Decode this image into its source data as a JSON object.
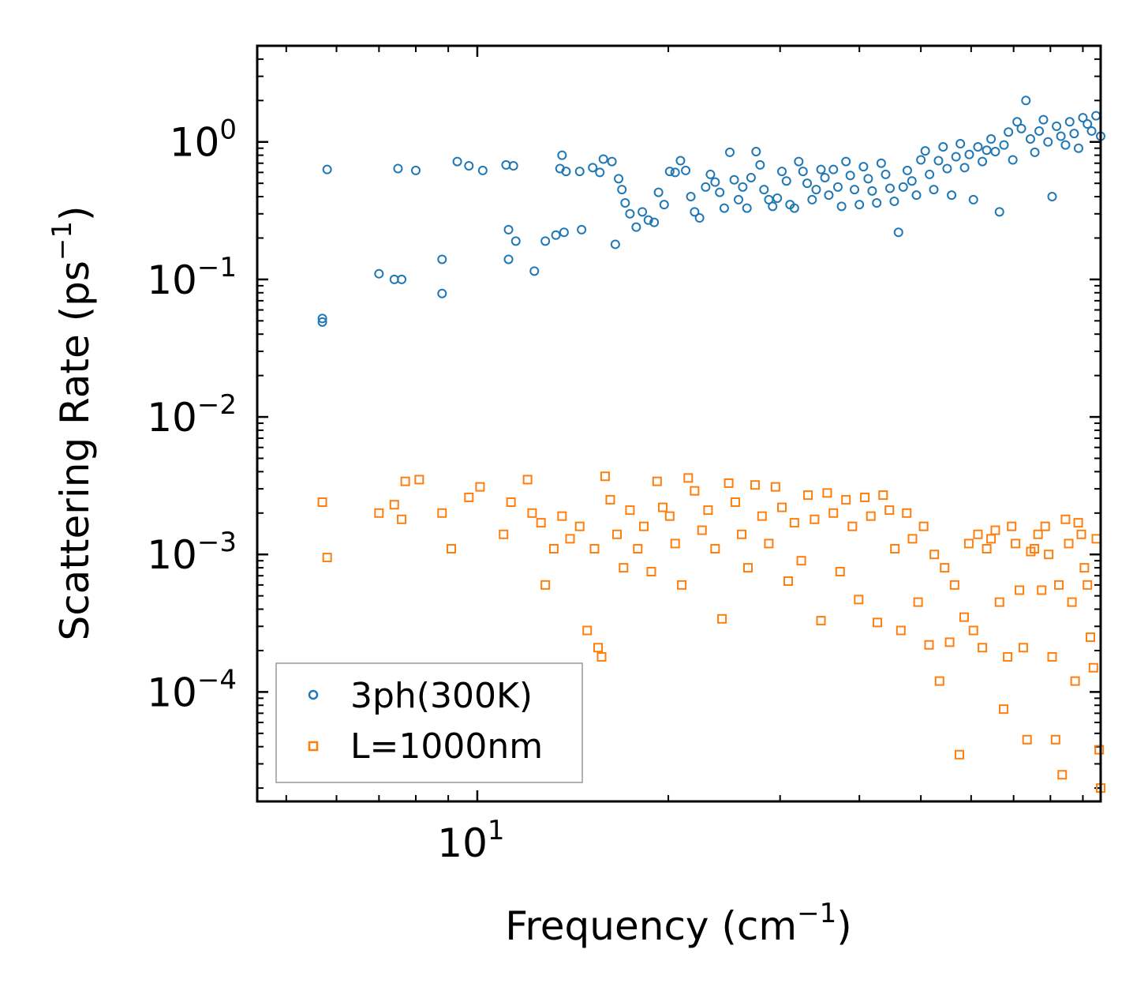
{
  "chart_data": {
    "type": "scatter",
    "title": "",
    "xlabel": "Frequency (cm",
    "xlabel_sup": "−1",
    "xlabel_close": ")",
    "ylabel": "Scattering Rate (ps",
    "ylabel_sup": "−1",
    "ylabel_close": ")",
    "xscale": "log",
    "yscale": "log",
    "xlim": [
      4.5,
      96
    ],
    "ylim": [
      1.6e-05,
      5.0
    ],
    "x_ticks": [
      {
        "value": 10,
        "base": "10",
        "exp": "1"
      }
    ],
    "y_ticks": [
      {
        "value": 1,
        "base": "10",
        "exp": "0"
      },
      {
        "value": 0.1,
        "base": "10",
        "exp": "−1"
      },
      {
        "value": 0.01,
        "base": "10",
        "exp": "−2"
      },
      {
        "value": 0.001,
        "base": "10",
        "exp": "−3"
      },
      {
        "value": 0.0001,
        "base": "10",
        "exp": "−4"
      }
    ],
    "legend_position": "bottom-left",
    "series": [
      {
        "name": "3ph(300K)",
        "marker": "circle",
        "color": "#1f77b4",
        "points": [
          [
            5.7,
            0.049
          ],
          [
            5.7,
            0.052
          ],
          [
            5.8,
            0.63
          ],
          [
            7.0,
            0.11
          ],
          [
            7.4,
            0.1
          ],
          [
            7.6,
            0.1
          ],
          [
            7.5,
            0.64
          ],
          [
            8.0,
            0.62
          ],
          [
            8.8,
            0.14
          ],
          [
            8.8,
            0.079
          ],
          [
            9.3,
            0.72
          ],
          [
            9.7,
            0.67
          ],
          [
            10.2,
            0.62
          ],
          [
            11.1,
            0.68
          ],
          [
            11.4,
            0.67
          ],
          [
            11.2,
            0.23
          ],
          [
            11.2,
            0.14
          ],
          [
            11.5,
            0.19
          ],
          [
            12.3,
            0.115
          ],
          [
            12.8,
            0.19
          ],
          [
            13.3,
            0.21
          ],
          [
            13.7,
            0.22
          ],
          [
            13.5,
            0.64
          ],
          [
            13.8,
            0.61
          ],
          [
            13.6,
            0.8
          ],
          [
            14.5,
            0.61
          ],
          [
            14.6,
            0.23
          ],
          [
            15.2,
            0.65
          ],
          [
            15.6,
            0.6
          ],
          [
            15.8,
            0.75
          ],
          [
            16.3,
            0.72
          ],
          [
            16.5,
            0.18
          ],
          [
            16.7,
            0.54
          ],
          [
            16.9,
            0.45
          ],
          [
            17.1,
            0.36
          ],
          [
            17.4,
            0.3
          ],
          [
            17.8,
            0.24
          ],
          [
            18.2,
            0.31
          ],
          [
            18.6,
            0.27
          ],
          [
            19.0,
            0.26
          ],
          [
            19.3,
            0.43
          ],
          [
            19.7,
            0.35
          ],
          [
            20.1,
            0.61
          ],
          [
            20.5,
            0.6
          ],
          [
            20.9,
            0.73
          ],
          [
            21.3,
            0.62
          ],
          [
            21.7,
            0.4
          ],
          [
            22.0,
            0.31
          ],
          [
            22.4,
            0.28
          ],
          [
            22.9,
            0.47
          ],
          [
            23.3,
            0.58
          ],
          [
            23.7,
            0.51
          ],
          [
            24.1,
            0.43
          ],
          [
            24.5,
            0.33
          ],
          [
            25.0,
            0.84
          ],
          [
            25.4,
            0.53
          ],
          [
            25.8,
            0.38
          ],
          [
            26.2,
            0.47
          ],
          [
            26.6,
            0.33
          ],
          [
            27.0,
            0.55
          ],
          [
            27.5,
            0.85
          ],
          [
            27.9,
            0.68
          ],
          [
            28.3,
            0.45
          ],
          [
            28.8,
            0.38
          ],
          [
            29.2,
            0.34
          ],
          [
            29.7,
            0.39
          ],
          [
            30.2,
            0.61
          ],
          [
            30.7,
            0.52
          ],
          [
            31.1,
            0.35
          ],
          [
            31.6,
            0.33
          ],
          [
            32.1,
            0.72
          ],
          [
            32.6,
            0.61
          ],
          [
            33.1,
            0.5
          ],
          [
            33.7,
            0.38
          ],
          [
            34.2,
            0.45
          ],
          [
            34.8,
            0.63
          ],
          [
            35.3,
            0.55
          ],
          [
            35.8,
            0.41
          ],
          [
            36.4,
            0.63
          ],
          [
            37.0,
            0.47
          ],
          [
            37.5,
            0.34
          ],
          [
            38.1,
            0.72
          ],
          [
            38.7,
            0.57
          ],
          [
            39.3,
            0.45
          ],
          [
            40.0,
            0.35
          ],
          [
            40.6,
            0.66
          ],
          [
            41.3,
            0.54
          ],
          [
            41.9,
            0.44
          ],
          [
            42.6,
            0.36
          ],
          [
            43.3,
            0.7
          ],
          [
            44.0,
            0.58
          ],
          [
            44.7,
            0.46
          ],
          [
            45.4,
            0.37
          ],
          [
            46.1,
            0.22
          ],
          [
            46.9,
            0.47
          ],
          [
            47.6,
            0.62
          ],
          [
            48.4,
            0.52
          ],
          [
            49.2,
            0.41
          ],
          [
            50.0,
            0.74
          ],
          [
            50.8,
            0.86
          ],
          [
            51.6,
            0.58
          ],
          [
            52.4,
            0.45
          ],
          [
            53.3,
            0.73
          ],
          [
            54.2,
            0.92
          ],
          [
            55.0,
            0.64
          ],
          [
            55.9,
            0.41
          ],
          [
            56.8,
            0.78
          ],
          [
            57.7,
            0.97
          ],
          [
            58.6,
            0.65
          ],
          [
            59.6,
            0.81
          ],
          [
            60.5,
            0.38
          ],
          [
            61.5,
            0.92
          ],
          [
            62.5,
            0.72
          ],
          [
            63.5,
            0.87
          ],
          [
            64.5,
            1.05
          ],
          [
            65.5,
            0.85
          ],
          [
            66.5,
            0.31
          ],
          [
            67.6,
            0.95
          ],
          [
            68.7,
            1.18
          ],
          [
            69.8,
            0.74
          ],
          [
            70.9,
            1.4
          ],
          [
            72.0,
            1.25
          ],
          [
            73.2,
            2.0
          ],
          [
            74.4,
            1.05
          ],
          [
            75.6,
            0.84
          ],
          [
            76.8,
            1.2
          ],
          [
            78.0,
            1.45
          ],
          [
            79.3,
            1.0
          ],
          [
            80.5,
            0.4
          ],
          [
            81.8,
            1.3
          ],
          [
            83.1,
            1.1
          ],
          [
            84.5,
            0.95
          ],
          [
            85.8,
            1.4
          ],
          [
            87.2,
            1.15
          ],
          [
            88.6,
            0.9
          ],
          [
            90.0,
            1.5
          ],
          [
            91.5,
            1.35
          ],
          [
            92.9,
            1.2
          ],
          [
            94.4,
            1.55
          ],
          [
            96.0,
            1.1
          ]
        ]
      },
      {
        "name": "L=1000nm",
        "marker": "square",
        "color": "#ff7f0e",
        "points": [
          [
            5.7,
            0.0024
          ],
          [
            5.8,
            0.00095
          ],
          [
            7.0,
            0.002
          ],
          [
            7.4,
            0.0023
          ],
          [
            7.6,
            0.0018
          ],
          [
            7.7,
            0.0034
          ],
          [
            8.1,
            0.0035
          ],
          [
            8.8,
            0.002
          ],
          [
            9.1,
            0.0011
          ],
          [
            9.7,
            0.0026
          ],
          [
            10.1,
            0.0031
          ],
          [
            11.0,
            0.0014
          ],
          [
            11.3,
            0.0024
          ],
          [
            12.0,
            0.0035
          ],
          [
            12.2,
            0.002
          ],
          [
            12.6,
            0.0017
          ],
          [
            12.8,
            0.0006
          ],
          [
            13.2,
            0.0011
          ],
          [
            13.6,
            0.0019
          ],
          [
            14.0,
            0.0013
          ],
          [
            14.5,
            0.0016
          ],
          [
            14.9,
            0.00028
          ],
          [
            15.3,
            0.0011
          ],
          [
            15.5,
            0.00021
          ],
          [
            15.7,
            0.00018
          ],
          [
            15.9,
            0.0037
          ],
          [
            16.2,
            0.0025
          ],
          [
            16.6,
            0.0014
          ],
          [
            17.0,
            0.0008
          ],
          [
            17.4,
            0.0021
          ],
          [
            17.9,
            0.0011
          ],
          [
            18.3,
            0.0016
          ],
          [
            18.8,
            0.00075
          ],
          [
            19.2,
            0.0034
          ],
          [
            19.6,
            0.0022
          ],
          [
            20.1,
            0.0019
          ],
          [
            20.5,
            0.0012
          ],
          [
            21.0,
            0.0006
          ],
          [
            21.5,
            0.0036
          ],
          [
            22.0,
            0.0029
          ],
          [
            22.6,
            0.0015
          ],
          [
            23.1,
            0.0021
          ],
          [
            23.7,
            0.0011
          ],
          [
            24.3,
            0.00034
          ],
          [
            24.9,
            0.0033
          ],
          [
            25.5,
            0.0024
          ],
          [
            26.1,
            0.0014
          ],
          [
            26.7,
            0.0008
          ],
          [
            27.4,
            0.0032
          ],
          [
            28.1,
            0.0019
          ],
          [
            28.8,
            0.0012
          ],
          [
            29.5,
            0.0031
          ],
          [
            30.2,
            0.0022
          ],
          [
            30.9,
            0.00064
          ],
          [
            31.6,
            0.0017
          ],
          [
            32.4,
            0.0009
          ],
          [
            33.2,
            0.0027
          ],
          [
            34.0,
            0.0018
          ],
          [
            34.8,
            0.00033
          ],
          [
            35.6,
            0.0028
          ],
          [
            36.4,
            0.002
          ],
          [
            37.3,
            0.00075
          ],
          [
            38.1,
            0.0025
          ],
          [
            39.0,
            0.0016
          ],
          [
            39.9,
            0.00047
          ],
          [
            40.8,
            0.0026
          ],
          [
            41.7,
            0.0019
          ],
          [
            42.7,
            0.00032
          ],
          [
            43.6,
            0.0027
          ],
          [
            44.6,
            0.0021
          ],
          [
            45.5,
            0.0011
          ],
          [
            46.5,
            0.00028
          ],
          [
            47.5,
            0.002
          ],
          [
            48.5,
            0.0013
          ],
          [
            49.5,
            0.00045
          ],
          [
            50.5,
            0.0016
          ],
          [
            51.5,
            0.00022
          ],
          [
            52.5,
            0.001
          ],
          [
            53.5,
            0.00012
          ],
          [
            54.5,
            0.0008
          ],
          [
            55.5,
            0.00023
          ],
          [
            56.5,
            0.0006
          ],
          [
            57.5,
            3.5e-05
          ],
          [
            58.5,
            0.00035
          ],
          [
            59.5,
            0.0012
          ],
          [
            60.5,
            0.00028
          ],
          [
            61.5,
            0.0014
          ],
          [
            62.5,
            0.00021
          ],
          [
            63.5,
            0.0011
          ],
          [
            64.5,
            0.0013
          ],
          [
            65.5,
            0.0015
          ],
          [
            66.5,
            0.00045
          ],
          [
            67.5,
            7.5e-05
          ],
          [
            68.5,
            0.00018
          ],
          [
            69.5,
            0.0016
          ],
          [
            70.5,
            0.0012
          ],
          [
            71.5,
            0.00055
          ],
          [
            72.5,
            0.00021
          ],
          [
            73.5,
            4.5e-05
          ],
          [
            74.5,
            0.00105
          ],
          [
            75.5,
            0.0011
          ],
          [
            76.5,
            0.0014
          ],
          [
            77.5,
            0.00055
          ],
          [
            78.5,
            0.0016
          ],
          [
            79.5,
            0.001
          ],
          [
            80.5,
            0.00018
          ],
          [
            81.5,
            4.5e-05
          ],
          [
            82.5,
            0.0006
          ],
          [
            83.5,
            2.5e-05
          ],
          [
            84.5,
            0.0018
          ],
          [
            85.5,
            0.0012
          ],
          [
            86.5,
            0.00045
          ],
          [
            87.5,
            0.00012
          ],
          [
            88.5,
            0.0017
          ],
          [
            89.5,
            0.0014
          ],
          [
            90.5,
            0.0008
          ],
          [
            91.5,
            0.0006
          ],
          [
            92.5,
            0.00025
          ],
          [
            93.5,
            0.00015
          ],
          [
            94.5,
            0.0013
          ],
          [
            95.5,
            3.8e-05
          ],
          [
            96.0,
            2e-05
          ]
        ]
      }
    ]
  }
}
